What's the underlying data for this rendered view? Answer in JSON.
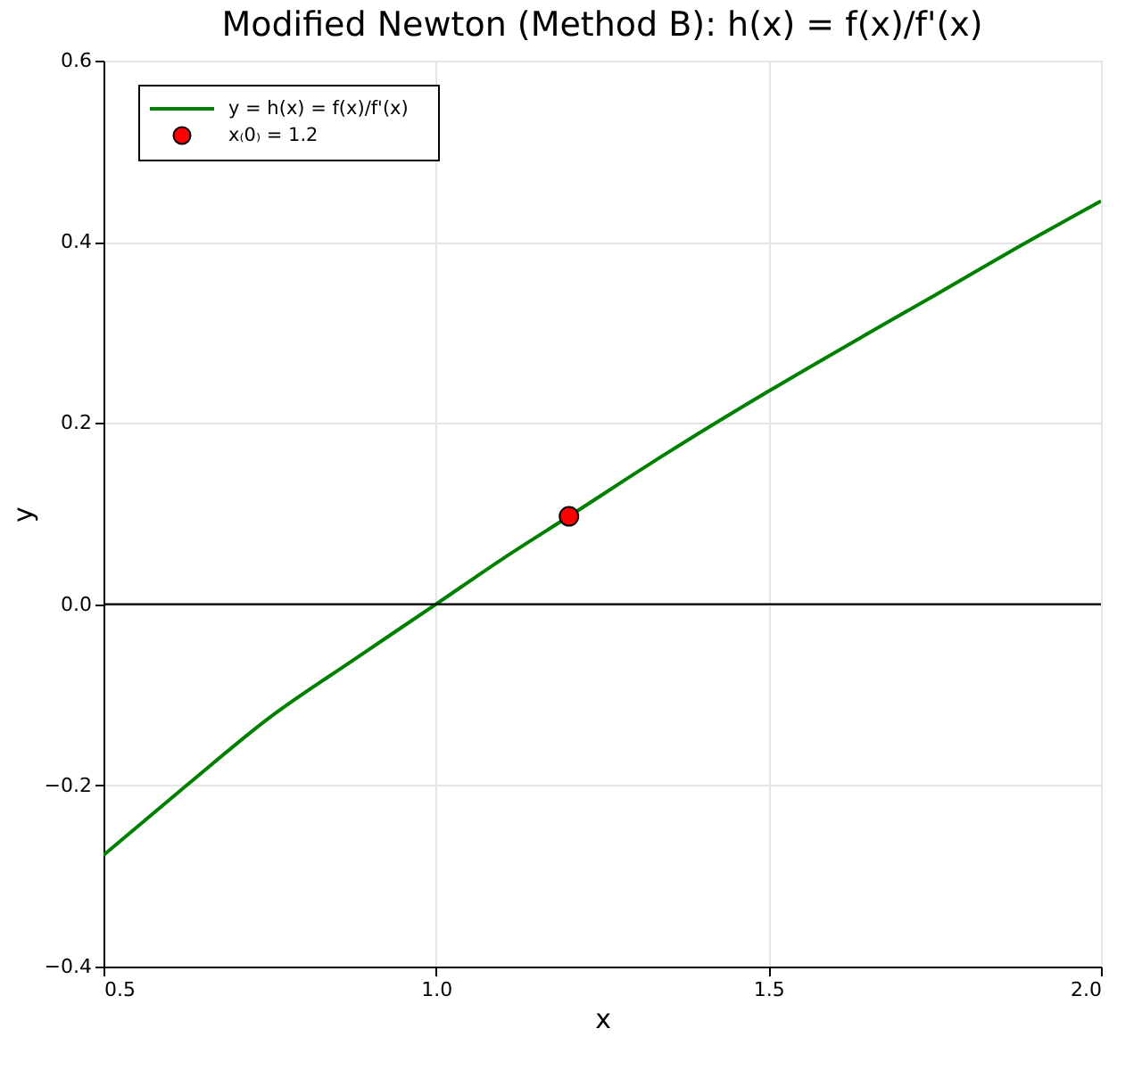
{
  "chart_data": {
    "type": "line",
    "title": "Modified Newton (Method B): h(x) = f(x)/f'(x)",
    "xlabel": "x",
    "ylabel": "y",
    "xlim": [
      0.5,
      2.0
    ],
    "ylim": [
      -0.4,
      0.6
    ],
    "xticks": [
      {
        "value": 0.5,
        "label": "0.5"
      },
      {
        "value": 1.0,
        "label": "1.0"
      },
      {
        "value": 1.5,
        "label": "1.5"
      },
      {
        "value": 2.0,
        "label": "2.0"
      }
    ],
    "yticks": [
      {
        "value": -0.4,
        "label": "−0.4"
      },
      {
        "value": -0.2,
        "label": "−0.2"
      },
      {
        "value": 0,
        "label": "0.0"
      },
      {
        "value": 0.2,
        "label": "0.2"
      },
      {
        "value": 0.4,
        "label": "0.4"
      },
      {
        "value": 0.6,
        "label": "0.6"
      }
    ],
    "grid": true,
    "legend": "top left",
    "ref_lines": [
      {
        "axis": "y",
        "value": 0,
        "color": "#000000"
      }
    ],
    "series": [
      {
        "name": "y = h(x) = f(x)/f'(x)",
        "type": "line",
        "color": "#008000",
        "x": [
          0.5,
          0.625,
          0.75,
          0.875,
          1.0,
          1.1,
          1.2,
          1.35,
          1.5,
          1.65,
          1.75,
          1.875,
          2.0
        ],
        "values": [
          -0.277,
          -0.2,
          -0.125,
          -0.062,
          0,
          0.05,
          0.097,
          0.168,
          0.235,
          0.299,
          0.341,
          0.394,
          0.445
        ]
      },
      {
        "name": "x₍0₎ = 1.2",
        "type": "scatter",
        "marker": "circle",
        "color": "#ff0000",
        "x": [
          1.2
        ],
        "values": [
          0.097
        ]
      }
    ]
  }
}
